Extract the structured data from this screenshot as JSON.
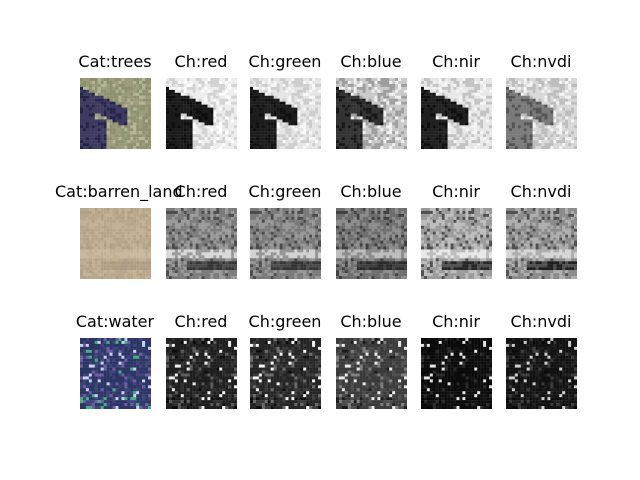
{
  "figure": {
    "rows": [
      {
        "panels": [
          {
            "title": "Cat:trees",
            "kind": "rgb",
            "palette": [
              "#8f906f",
              "#9c9c7a",
              "#3d3a5f",
              "#24224a",
              "#b5b495"
            ]
          },
          {
            "title": "Ch:red",
            "kind": "gray",
            "palette": [
              "#ededed",
              "#d2d2d2",
              "#1a1a1a",
              "#0d0d0d",
              "#ffffff"
            ]
          },
          {
            "title": "Ch:green",
            "kind": "gray",
            "palette": [
              "#e5e5e5",
              "#cdcdcd",
              "#1d1d1d",
              "#101010",
              "#f8f8f8"
            ]
          },
          {
            "title": "Ch:blue",
            "kind": "gray",
            "palette": [
              "#c9c9c9",
              "#9e9e9e",
              "#323232",
              "#171717",
              "#f2f2f2"
            ]
          },
          {
            "title": "Ch:nir",
            "kind": "gray",
            "palette": [
              "#e7e7e7",
              "#c3c3c3",
              "#202020",
              "#0e0e0e",
              "#f5f5f5"
            ]
          },
          {
            "title": "Ch:nvdi",
            "kind": "gray",
            "palette": [
              "#d8d8d8",
              "#bdbdbd",
              "#7a7a7a",
              "#545454",
              "#f4f4f4"
            ]
          }
        ]
      },
      {
        "panels": [
          {
            "title": "Cat:barren_land",
            "kind": "rgb",
            "palette": [
              "#b9a68c",
              "#c2b194",
              "#b19f86",
              "#ad9a82",
              "#c9b99d"
            ]
          },
          {
            "title": "Ch:red",
            "kind": "gray",
            "palette": [
              "#7b7b7b",
              "#9b9b9b",
              "#4d4d4d",
              "#353535",
              "#d9d9d9"
            ]
          },
          {
            "title": "Ch:green",
            "kind": "gray",
            "palette": [
              "#7a7a7a",
              "#969696",
              "#4b4b4b",
              "#343434",
              "#d2d2d2"
            ]
          },
          {
            "title": "Ch:blue",
            "kind": "gray",
            "palette": [
              "#6d6d6d",
              "#8c8c8c",
              "#404040",
              "#2a2a2a",
              "#bdbdbd"
            ]
          },
          {
            "title": "Ch:nir",
            "kind": "gray",
            "palette": [
              "#9a9a9a",
              "#bdbdbd",
              "#505050",
              "#262626",
              "#e8e8e8"
            ]
          },
          {
            "title": "Ch:nvdi",
            "kind": "gray",
            "palette": [
              "#8a8a8a",
              "#aeaeae",
              "#505050",
              "#1f1f1f",
              "#d6d6d6"
            ]
          }
        ]
      },
      {
        "panels": [
          {
            "title": "Cat:water",
            "kind": "rgb",
            "palette": [
              "#2c3466",
              "#3c4478",
              "#6b5ea3",
              "#3fb27f",
              "#c8d3f0"
            ]
          },
          {
            "title": "Ch:red",
            "kind": "gray",
            "palette": [
              "#1e1e1e",
              "#2f2f2f",
              "#5c5c5c",
              "#0a0a0a",
              "#f0f0f0"
            ]
          },
          {
            "title": "Ch:green",
            "kind": "gray",
            "palette": [
              "#252525",
              "#393939",
              "#6b6b6b",
              "#0c0c0c",
              "#f5f5f5"
            ]
          },
          {
            "title": "Ch:blue",
            "kind": "gray",
            "palette": [
              "#3a3a3a",
              "#4d4d4d",
              "#7e7e7e",
              "#1a1a1a",
              "#ebebeb"
            ]
          },
          {
            "title": "Ch:nir",
            "kind": "gray",
            "palette": [
              "#0a0a0a",
              "#121212",
              "#2b2b2b",
              "#050505",
              "#e5e5e5"
            ]
          },
          {
            "title": "Ch:nvdi",
            "kind": "gray",
            "palette": [
              "#111111",
              "#1e1e1e",
              "#3c3c3c",
              "#080808",
              "#cfcfcf"
            ]
          }
        ]
      }
    ]
  }
}
